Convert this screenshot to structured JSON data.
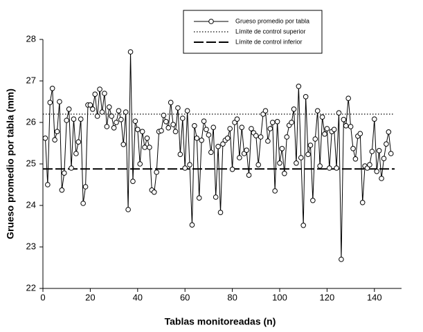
{
  "chart_data": {
    "type": "line",
    "xlabel": "Tablas monitoreadas (n)",
    "ylabel": "Grueso promedio por tabla (mm)",
    "xlim": [
      0,
      150
    ],
    "ylim": [
      22,
      28
    ],
    "xticks": [
      0,
      20,
      40,
      60,
      80,
      100,
      120,
      140
    ],
    "yticks": [
      22,
      23,
      24,
      25,
      26,
      27,
      28
    ],
    "legend": "upper right",
    "series": [
      {
        "name": "Grueso promedio por tabla",
        "color": "#000000",
        "marker": "circle",
        "x": [
          1,
          2,
          3,
          4,
          5,
          6,
          7,
          8,
          9,
          10,
          11,
          12,
          13,
          14,
          15,
          16,
          17,
          18,
          19,
          20,
          21,
          22,
          23,
          24,
          25,
          26,
          27,
          28,
          29,
          30,
          31,
          32,
          33,
          34,
          35,
          36,
          37,
          38,
          39,
          40,
          41,
          42,
          43,
          44,
          45,
          46,
          47,
          48,
          49,
          50,
          51,
          52,
          53,
          54,
          55,
          56,
          57,
          58,
          59,
          60,
          61,
          62,
          63,
          64,
          65,
          66,
          67,
          68,
          69,
          70,
          71,
          72,
          73,
          74,
          75,
          76,
          77,
          78,
          79,
          80,
          81,
          82,
          83,
          84,
          85,
          86,
          87,
          88,
          89,
          90,
          91,
          92,
          93,
          94,
          95,
          96,
          97,
          98,
          99,
          100,
          101,
          102,
          103,
          104,
          105,
          106,
          107,
          108,
          109,
          110,
          111,
          112,
          113,
          114,
          115,
          116,
          117,
          118,
          119,
          120,
          121,
          122,
          123,
          124,
          125,
          126,
          127,
          128,
          129,
          130,
          131,
          132,
          133,
          134,
          135,
          136,
          137,
          138,
          139,
          140,
          141,
          142,
          143,
          144,
          145,
          146,
          147
        ],
        "values": [
          25.62,
          24.5,
          26.48,
          26.82,
          25.58,
          25.78,
          26.5,
          24.37,
          24.78,
          26.05,
          26.32,
          24.9,
          26.08,
          25.25,
          25.53,
          26.08,
          24.05,
          24.45,
          26.42,
          26.42,
          26.32,
          26.68,
          26.15,
          26.8,
          26.25,
          26.7,
          25.9,
          26.37,
          26.15,
          25.87,
          26.0,
          26.28,
          26.07,
          25.47,
          26.25,
          23.9,
          27.7,
          24.58,
          26.03,
          25.83,
          25.0,
          25.78,
          25.4,
          25.62,
          25.4,
          24.37,
          24.32,
          24.8,
          25.78,
          25.8,
          26.17,
          26.02,
          25.87,
          26.48,
          25.95,
          25.78,
          26.35,
          25.23,
          26.1,
          24.9,
          26.28,
          24.98,
          23.53,
          25.92,
          25.62,
          24.18,
          25.57,
          26.03,
          25.83,
          25.7,
          25.28,
          25.88,
          24.2,
          25.42,
          23.83,
          25.48,
          25.57,
          25.62,
          25.85,
          24.87,
          26.0,
          26.08,
          25.15,
          25.88,
          25.25,
          25.33,
          24.73,
          25.85,
          25.75,
          25.68,
          24.98,
          25.65,
          26.2,
          26.28,
          25.55,
          25.85,
          26.0,
          24.35,
          26.02,
          25.02,
          25.37,
          24.77,
          25.65,
          25.93,
          26.0,
          26.32,
          25.02,
          26.87,
          25.15,
          23.52,
          26.62,
          25.23,
          25.45,
          24.12,
          25.6,
          26.28,
          24.95,
          26.13,
          25.72,
          25.85,
          24.9,
          25.78,
          25.83,
          24.9,
          26.23,
          22.7,
          26.07,
          25.92,
          26.58,
          25.9,
          25.37,
          25.12,
          25.67,
          25.73,
          24.07,
          24.95,
          24.9,
          24.98,
          25.3,
          26.08,
          24.82,
          25.32,
          24.65,
          25.13,
          25.48,
          25.77,
          25.25
        ]
      }
    ],
    "hlines": [
      {
        "name": "Límite de control superior",
        "value": 26.2,
        "style": "dotted",
        "color": "#000000"
      },
      {
        "name": "Límite de control inferior",
        "value": 24.88,
        "style": "dashed",
        "color": "#000000"
      }
    ]
  }
}
